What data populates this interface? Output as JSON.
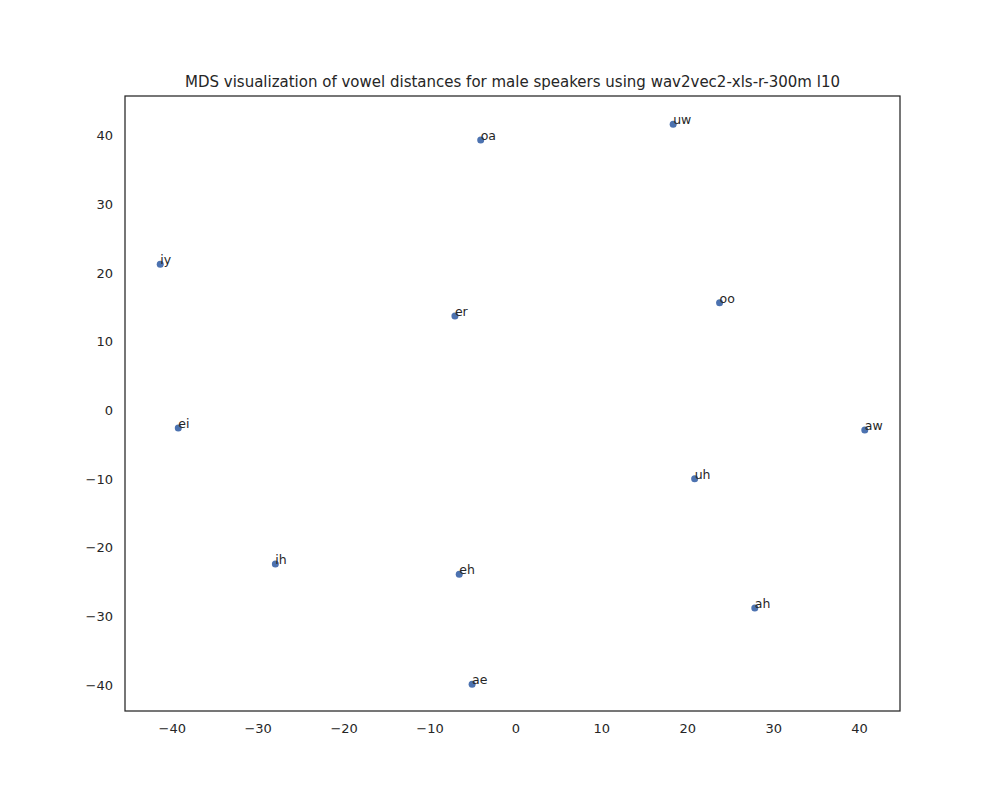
{
  "chart_data": {
    "type": "scatter",
    "title": "MDS visualization of vowel distances for male speakers using wav2vec2-xls-r-300m l10",
    "labels": [
      "oa",
      "uw",
      "iy",
      "er",
      "oo",
      "ei",
      "aw",
      "uh",
      "ih",
      "eh",
      "ah",
      "ae"
    ],
    "x": [
      -4.1,
      18.3,
      -41.4,
      -7.1,
      23.7,
      -39.3,
      40.6,
      20.8,
      -28.0,
      -6.6,
      27.8,
      -5.1
    ],
    "values": [
      39.3,
      41.6,
      21.2,
      13.7,
      15.6,
      -2.6,
      -2.9,
      -10.0,
      -22.4,
      -23.9,
      -28.8,
      -39.9
    ],
    "color": "#4c72b0",
    "marker": "circle",
    "grid": false,
    "xlim": [
      -45.5,
      44.7
    ],
    "ylim": [
      -43.8,
      45.7
    ],
    "xticks": [
      {
        "value": -40,
        "label": "−40"
      },
      {
        "value": -30,
        "label": "−30"
      },
      {
        "value": -20,
        "label": "−20"
      },
      {
        "value": -10,
        "label": "−10"
      },
      0,
      10,
      20,
      30,
      40
    ],
    "yticks": [
      {
        "value": -40,
        "label": "−40"
      },
      {
        "value": -30,
        "label": "−30"
      },
      {
        "value": -20,
        "label": "−20"
      },
      {
        "value": -10,
        "label": "−10"
      },
      0,
      10,
      20,
      30,
      40
    ]
  }
}
